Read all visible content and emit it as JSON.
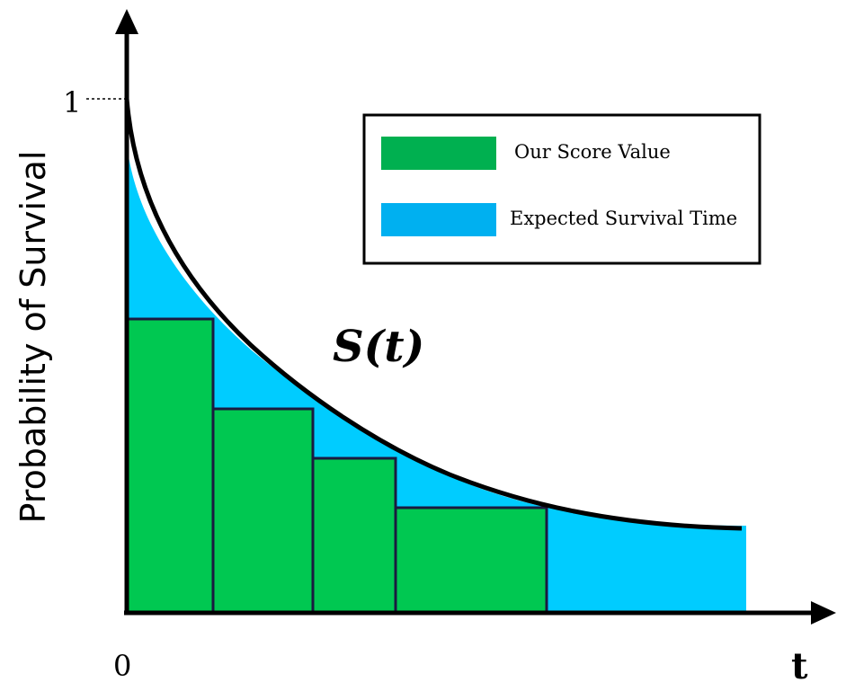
{
  "axes": {
    "ylabel": "Probability of Survival",
    "xlabel": "t",
    "y_tick": "1",
    "x_tick": "0"
  },
  "curve_label": "S(t)",
  "legend": {
    "items": [
      {
        "label": "Our Score Value",
        "color": "#00b050"
      },
      {
        "label": "Expected Survival Time",
        "color": "#00b0f0"
      }
    ]
  },
  "colors": {
    "bars": "#00c851",
    "area": "#00ccff",
    "axis": "#000000",
    "curve": "#000000",
    "bar_border": "#1a1a40"
  }
}
